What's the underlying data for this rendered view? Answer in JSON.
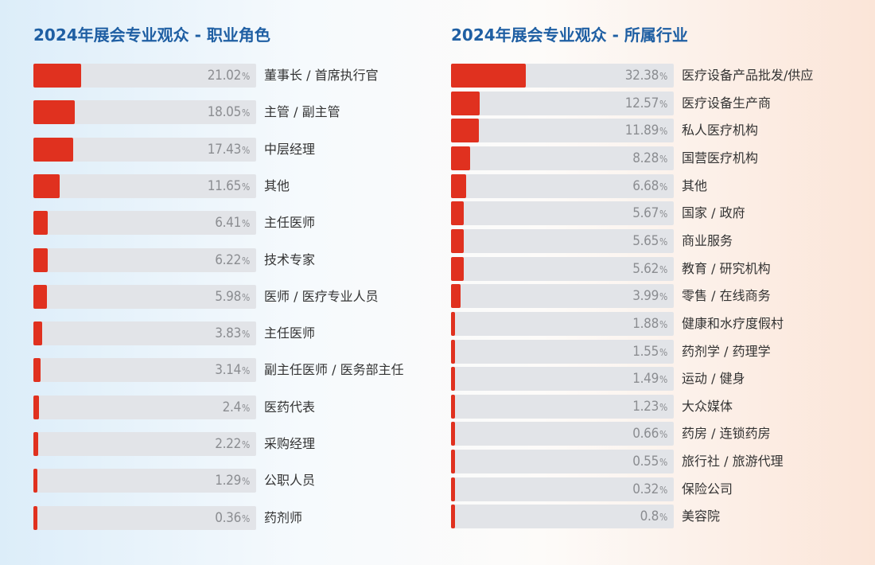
{
  "colors": {
    "title": "#1f5fa3",
    "bar": "#e0311f",
    "track": "#e2e4e8",
    "percent": "#8b8d91",
    "label": "#333333"
  },
  "chart_data": [
    {
      "type": "bar",
      "orientation": "horizontal",
      "title": "2024年展会专业观众 - 职业角色",
      "unit": "%",
      "xlim": [
        0,
        100
      ],
      "grid": false,
      "categories": [
        "董事长 / 首席执行官",
        "主管 / 副主管",
        "中层经理",
        "其他",
        "主任医师",
        "技术专家",
        "医师  / 医疗专业人员",
        "主任医师",
        "副主任医师 / 医务部主任",
        "医药代表",
        "采购经理",
        "公职人员",
        "药剂师"
      ],
      "values": [
        21.02,
        18.05,
        17.43,
        11.65,
        6.41,
        6.22,
        5.98,
        3.83,
        3.14,
        2.4,
        2.22,
        1.29,
        0.36
      ],
      "value_labels": [
        "21.02",
        "18.05",
        "17.43",
        "11.65",
        "6.41",
        "6.22",
        "5.98",
        "3.83",
        "3.14",
        "2.4",
        "2.22",
        "1.29",
        "0.36"
      ]
    },
    {
      "type": "bar",
      "orientation": "horizontal",
      "title": "2024年展会专业观众 - 所属行业",
      "unit": "%",
      "xlim": [
        0,
        100
      ],
      "grid": false,
      "categories": [
        "医疗设备产品批发/供应",
        "医疗设备生产商",
        "私人医疗机构",
        "国营医疗机构",
        "其他",
        "国家 / 政府",
        "商业服务",
        "教育 / 研究机构",
        "零售 / 在线商务",
        "健康和水疗度假村",
        "药剂学 / 药理学",
        "运动 / 健身",
        "大众媒体",
        "药房 / 连锁药房",
        "旅行社 / 旅游代理",
        "保险公司",
        "美容院"
      ],
      "values": [
        32.38,
        12.57,
        11.89,
        8.28,
        6.68,
        5.67,
        5.65,
        5.62,
        3.99,
        1.88,
        1.55,
        1.49,
        1.23,
        0.66,
        0.55,
        0.32,
        0.8
      ],
      "value_labels": [
        "32.38",
        "12.57",
        "11.89",
        "8.28",
        "6.68",
        "5.67",
        "5.65",
        "5.62",
        "3.99",
        "1.88",
        "1.55",
        "1.49",
        "1.23",
        "0.66",
        "0.55",
        "0.32",
        "0.8"
      ]
    }
  ]
}
